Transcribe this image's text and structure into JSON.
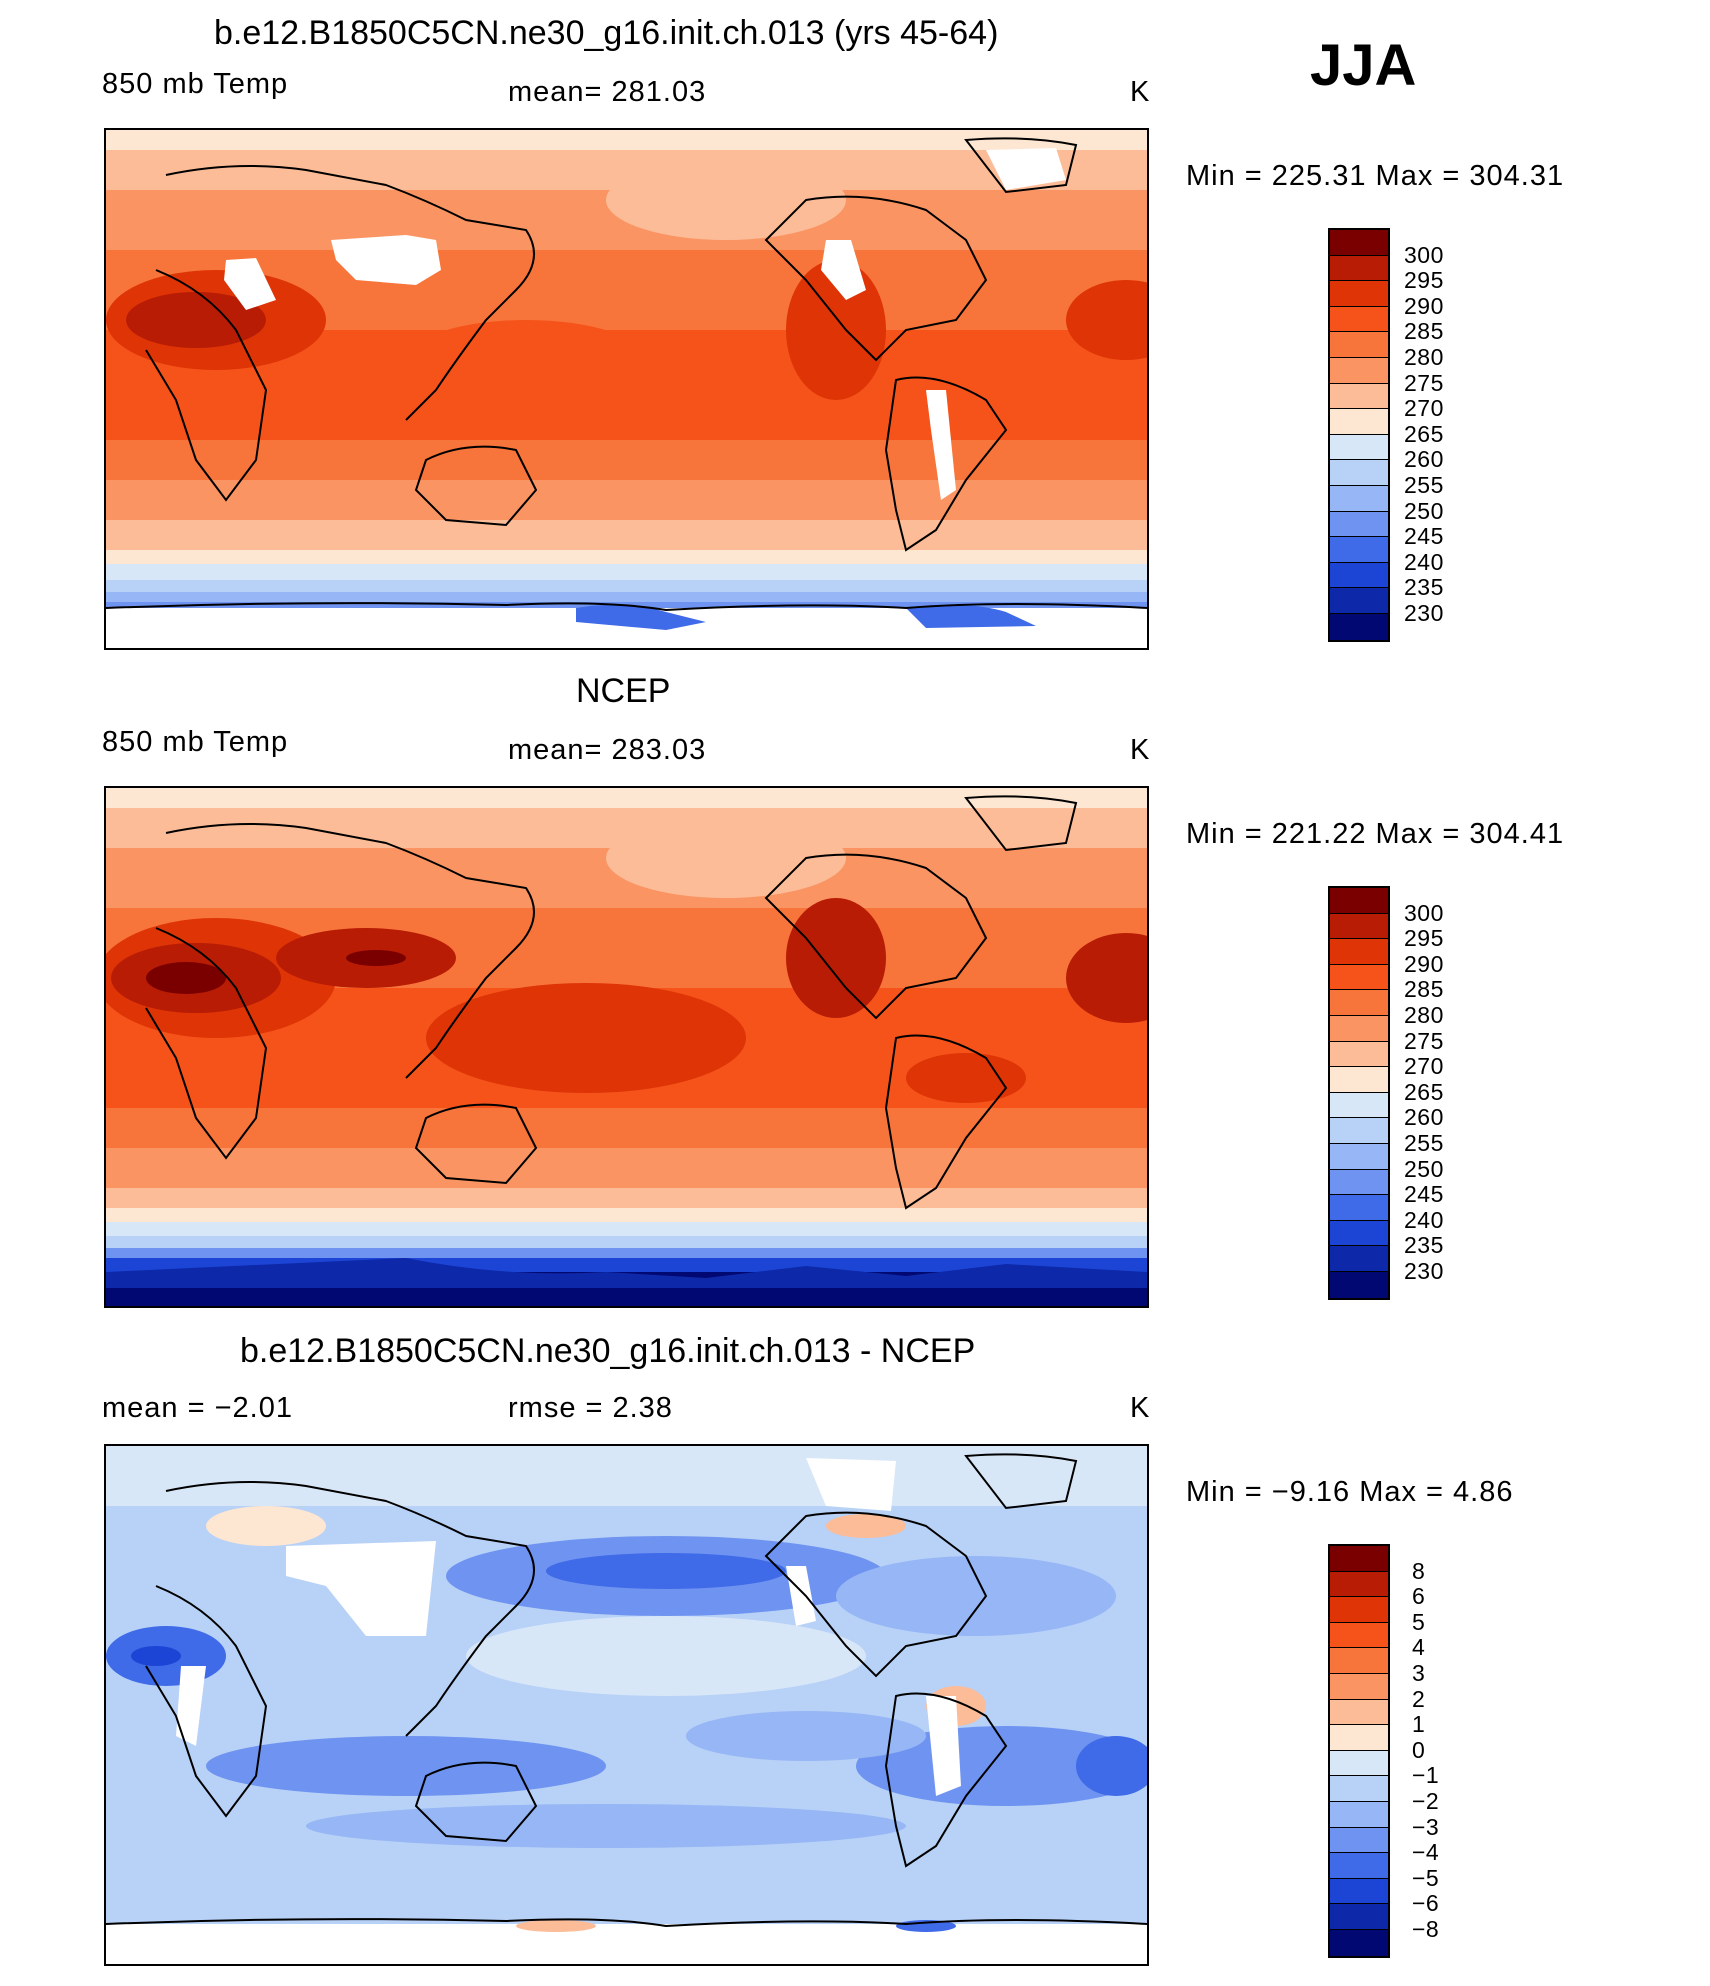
{
  "season": "JJA",
  "panels": [
    {
      "title": "b.e12.B1850C5CN.ne30_g16.init.ch.013 (yrs 45-64)",
      "left_label": "850 mb Temp",
      "center_label": "mean=  281.03",
      "units": "K",
      "minmax": "Min  =  225.31  Max  =  304.31",
      "scale": "abs"
    },
    {
      "title": "NCEP",
      "left_label": "850 mb Temp",
      "center_label": "mean=  283.03",
      "units": "K",
      "minmax": "Min  =  221.22  Max  =  304.41",
      "scale": "abs"
    },
    {
      "title": "b.e12.B1850C5CN.ne30_g16.init.ch.013 - NCEP",
      "left_label": "mean  =    −2.01",
      "center_label": "rmse  =     2.38",
      "units": "K",
      "minmax": "Min  =    −9.16  Max  =     4.86",
      "scale": "diff"
    }
  ],
  "colorbars": {
    "abs": {
      "labels": [
        "300",
        "295",
        "290",
        "285",
        "280",
        "275",
        "270",
        "265",
        "260",
        "255",
        "250",
        "245",
        "240",
        "235",
        "230"
      ],
      "colors": [
        "#7a0000",
        "#b81c04",
        "#de3406",
        "#f5531a",
        "#f7743a",
        "#fa9462",
        "#fcbc98",
        "#fde6d2",
        "#d8e7f7",
        "#b7d1f7",
        "#96b6f5",
        "#6f93f0",
        "#3f6ae8",
        "#1c45d6",
        "#0d28a8",
        "#020872"
      ]
    },
    "diff": {
      "labels": [
        "8",
        "6",
        "5",
        "4",
        "3",
        "2",
        "1",
        "0",
        "−1",
        "−2",
        "−3",
        "−4",
        "−5",
        "−6",
        "−8"
      ],
      "colors": [
        "#7a0000",
        "#b81c04",
        "#de3406",
        "#f5531a",
        "#f7743a",
        "#fa9462",
        "#fcbc98",
        "#fde6d2",
        "#d8e7f7",
        "#b7d1f7",
        "#96b6f5",
        "#6f93f0",
        "#3f6ae8",
        "#1c45d6",
        "#0d28a8",
        "#020872"
      ]
    }
  }
}
